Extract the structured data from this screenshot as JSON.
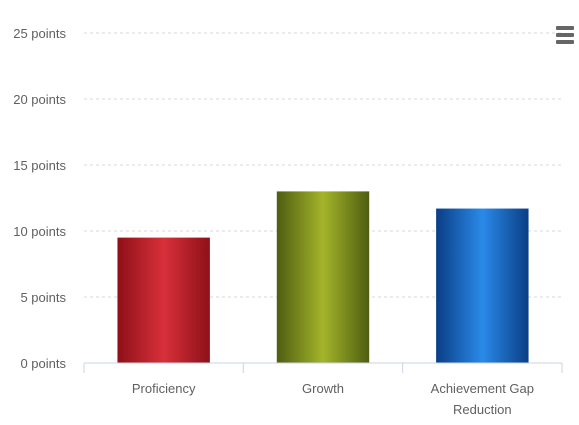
{
  "chart_data": {
    "type": "bar",
    "categories": [
      "Proficiency",
      "Growth",
      "Achievement Gap Reduction"
    ],
    "values": [
      9.5,
      13,
      11.7
    ],
    "ylim": [
      0,
      25
    ],
    "yticks": [
      0,
      5,
      10,
      15,
      20,
      25
    ],
    "ytick_labels": [
      "0 points",
      "5 points",
      "10 points",
      "15 points",
      "20 points",
      "25 points"
    ],
    "grid": true,
    "legend": "none",
    "colors": [
      "#c0202a",
      "#8a9a20",
      "#1a6cc8"
    ]
  },
  "toolbar": {
    "menu_icon": "hamburger-menu-icon"
  }
}
